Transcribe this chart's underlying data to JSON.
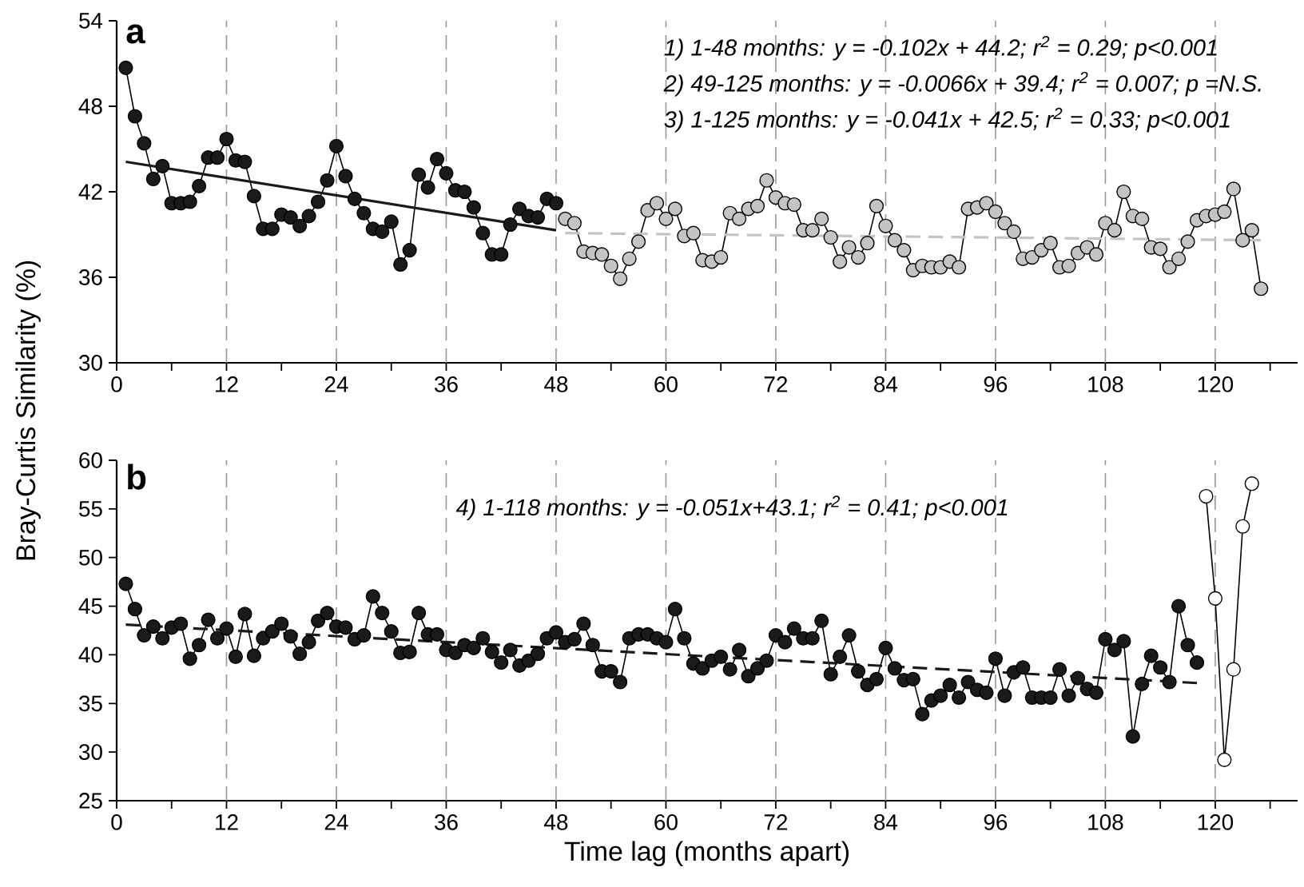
{
  "chart_data": [
    {
      "type": "line",
      "title": "a",
      "ylabel": "Bray-Curtis Similarity (%)",
      "annotations": [
        "1) 1-48 months: y = -0.102x + 44.2; r$^{2}$ = 0.29; p<0.001",
        "2) 49-125 months: y = -0.0066x + 39.4; r$^{2}$ = 0.007; p =N.S.",
        "3) 1-125 months: y = -0.041x + 42.5; r$^{2}$ = 0.33; p<0.001"
      ],
      "xlim": [
        0,
        129
      ],
      "ylim": [
        30,
        54
      ],
      "xticks": [
        0,
        {
          "value": 6,
          "label": null
        },
        12,
        {
          "value": 18,
          "label": null
        },
        24,
        {
          "value": 30,
          "label": null
        },
        36,
        {
          "value": 42,
          "label": null
        },
        48,
        {
          "value": 54,
          "label": null
        },
        60,
        {
          "value": 66,
          "label": null
        },
        72,
        {
          "value": 78,
          "label": null
        },
        84,
        {
          "value": 90,
          "label": null
        },
        96,
        {
          "value": 102,
          "label": null
        },
        108,
        {
          "value": 114,
          "label": null
        },
        120,
        {
          "value": 126,
          "label": null
        }
      ],
      "yticks": [
        30,
        36,
        42,
        48,
        54
      ],
      "ref_lines": [
        {
          "axis": "x",
          "value": 12,
          "color": "#999999",
          "line_style": "dashed"
        },
        {
          "axis": "x",
          "value": 24,
          "color": "#999999",
          "line_style": "dashed"
        },
        {
          "axis": "x",
          "value": 36,
          "color": "#999999",
          "line_style": "dashed"
        },
        {
          "axis": "x",
          "value": 48,
          "color": "#999999",
          "line_style": "dashed"
        },
        {
          "axis": "x",
          "value": 60,
          "color": "#999999",
          "line_style": "dashed"
        },
        {
          "axis": "x",
          "value": 72,
          "color": "#999999",
          "line_style": "dashed"
        },
        {
          "axis": "x",
          "value": 84,
          "color": "#999999",
          "line_style": "dashed"
        },
        {
          "axis": "x",
          "value": 96,
          "color": "#999999",
          "line_style": "dashed"
        },
        {
          "axis": "x",
          "value": 108,
          "color": "#999999",
          "line_style": "dashed"
        },
        {
          "axis": "x",
          "value": 120,
          "color": "#999999",
          "line_style": "dashed"
        }
      ],
      "series": [
        {
          "type": "line",
          "marker": "circle",
          "color": "#1a1a1a",
          "x": [
            1,
            2,
            3,
            4,
            5,
            6,
            7,
            8,
            9,
            10,
            11,
            12,
            13,
            14,
            15,
            16,
            17,
            18,
            19,
            20,
            21,
            22,
            23,
            24,
            25,
            26,
            27,
            28,
            29,
            30,
            31,
            32,
            33,
            34,
            35,
            36,
            37,
            38,
            39,
            40,
            41,
            42,
            43,
            44,
            45,
            46,
            47,
            48
          ],
          "values": [
            50.7,
            47.3,
            45.4,
            42.9,
            43.8,
            41.2,
            41.2,
            41.3,
            42.4,
            44.4,
            44.4,
            45.7,
            44.2,
            44.1,
            41.7,
            39.4,
            39.4,
            40.4,
            40.2,
            39.6,
            40.3,
            41.3,
            42.8,
            45.2,
            43.1,
            41.5,
            40.5,
            39.4,
            39.2,
            39.9,
            36.9,
            37.9,
            43.2,
            42.3,
            44.3,
            43.3,
            42.1,
            42.0,
            40.9,
            39.1,
            37.6,
            37.6,
            39.7,
            40.8,
            40.3,
            40.2,
            41.5,
            41.2
          ]
        },
        {
          "type": "line",
          "marker": "circle",
          "color": "#c4c4c4",
          "x": [
            49,
            50,
            51,
            52,
            53,
            54,
            55,
            56,
            57,
            58,
            59,
            60,
            61,
            62,
            63,
            64,
            65,
            66,
            67,
            68,
            69,
            70,
            71,
            72,
            73,
            74,
            75,
            76,
            77,
            78,
            79,
            80,
            81,
            82,
            83,
            84,
            85,
            86,
            87,
            88,
            89,
            90,
            91,
            92,
            93,
            94,
            95,
            96,
            97,
            98,
            99,
            100,
            101,
            102,
            103,
            104,
            105,
            106,
            107,
            108,
            109,
            110,
            111,
            112,
            113,
            114,
            115,
            116,
            117,
            118,
            119,
            120,
            121,
            122,
            123,
            124,
            125
          ],
          "values": [
            40.1,
            39.8,
            37.8,
            37.7,
            37.6,
            36.8,
            35.9,
            37.3,
            38.5,
            40.7,
            41.2,
            40.1,
            40.8,
            38.9,
            39.1,
            37.2,
            37.1,
            37.4,
            40.5,
            40.1,
            40.8,
            41.0,
            42.8,
            41.6,
            41.2,
            41.1,
            39.3,
            39.3,
            40.1,
            38.8,
            37.1,
            38.1,
            37.4,
            38.4,
            41.0,
            39.6,
            38.6,
            37.9,
            36.5,
            36.8,
            36.7,
            36.7,
            37.1,
            36.7,
            40.8,
            40.9,
            41.2,
            40.6,
            39.8,
            39.2,
            37.3,
            37.4,
            37.9,
            38.4,
            36.7,
            36.8,
            37.7,
            38.1,
            37.6,
            39.8,
            39.3,
            42.0,
            40.3,
            40.1,
            38.1,
            38.0,
            36.7,
            37.3,
            38.5,
            40.0,
            40.3,
            40.4,
            40.6,
            42.2,
            38.6,
            39.3,
            35.2
          ]
        },
        {
          "type": "line",
          "marker": "none",
          "line_style": "solid",
          "color": "#1a1a1a",
          "x": [
            1,
            48
          ],
          "values": [
            44.1,
            39.3
          ]
        },
        {
          "type": "line",
          "marker": "none",
          "line_style": "dashed",
          "color": "#c4c4c4",
          "x": [
            49,
            125
          ],
          "values": [
            39.1,
            38.6
          ]
        }
      ]
    },
    {
      "type": "line",
      "title": "b",
      "xlabel": "Time lag (months apart)",
      "annotations": [
        "4) 1-118 months: y = -0.051x+43.1; r$^{2}$ = 0.41; p<0.001"
      ],
      "xlim": [
        0,
        129
      ],
      "ylim": [
        25,
        60
      ],
      "xticks": [
        0,
        {
          "value": 6,
          "label": null
        },
        12,
        {
          "value": 18,
          "label": null
        },
        24,
        {
          "value": 30,
          "label": null
        },
        36,
        {
          "value": 42,
          "label": null
        },
        48,
        {
          "value": 54,
          "label": null
        },
        60,
        {
          "value": 66,
          "label": null
        },
        72,
        {
          "value": 78,
          "label": null
        },
        84,
        {
          "value": 90,
          "label": null
        },
        96,
        {
          "value": 102,
          "label": null
        },
        108,
        {
          "value": 114,
          "label": null
        },
        120,
        {
          "value": 126,
          "label": null
        }
      ],
      "yticks": [
        25,
        30,
        35,
        40,
        45,
        50,
        55,
        60
      ],
      "ref_lines": [
        {
          "axis": "x",
          "value": 12,
          "color": "#999999",
          "line_style": "dashed"
        },
        {
          "axis": "x",
          "value": 24,
          "color": "#999999",
          "line_style": "dashed"
        },
        {
          "axis": "x",
          "value": 36,
          "color": "#999999",
          "line_style": "dashed"
        },
        {
          "axis": "x",
          "value": 48,
          "color": "#999999",
          "line_style": "dashed"
        },
        {
          "axis": "x",
          "value": 60,
          "color": "#999999",
          "line_style": "dashed"
        },
        {
          "axis": "x",
          "value": 72,
          "color": "#999999",
          "line_style": "dashed"
        },
        {
          "axis": "x",
          "value": 84,
          "color": "#999999",
          "line_style": "dashed"
        },
        {
          "axis": "x",
          "value": 96,
          "color": "#999999",
          "line_style": "dashed"
        },
        {
          "axis": "x",
          "value": 108,
          "color": "#999999",
          "line_style": "dashed"
        },
        {
          "axis": "x",
          "value": 120,
          "color": "#999999",
          "line_style": "dashed"
        }
      ],
      "series": [
        {
          "type": "line",
          "marker": "circle",
          "color": "#1a1a1a",
          "x": [
            1,
            2,
            3,
            4,
            5,
            6,
            7,
            8,
            9,
            10,
            11,
            12,
            13,
            14,
            15,
            16,
            17,
            18,
            19,
            20,
            21,
            22,
            23,
            24,
            25,
            26,
            27,
            28,
            29,
            30,
            31,
            32,
            33,
            34,
            35,
            36,
            37,
            38,
            39,
            40,
            41,
            42,
            43,
            44,
            45,
            46,
            47,
            48,
            49,
            50,
            51,
            52,
            53,
            54,
            55,
            56,
            57,
            58,
            59,
            60,
            61,
            62,
            63,
            64,
            65,
            66,
            67,
            68,
            69,
            70,
            71,
            72,
            73,
            74,
            75,
            76,
            77,
            78,
            79,
            80,
            81,
            82,
            83,
            84,
            85,
            86,
            87,
            88,
            89,
            90,
            91,
            92,
            93,
            94,
            95,
            96,
            97,
            98,
            99,
            100,
            101,
            102,
            103,
            104,
            105,
            106,
            107,
            108,
            109,
            110,
            111,
            112,
            113,
            114,
            115,
            116,
            117,
            118
          ],
          "values": [
            47.3,
            44.7,
            42.0,
            42.9,
            41.7,
            42.8,
            43.2,
            39.6,
            41.0,
            43.6,
            41.7,
            42.7,
            39.8,
            44.2,
            39.9,
            41.7,
            42.4,
            43.2,
            41.9,
            40.1,
            41.3,
            43.5,
            44.3,
            42.9,
            42.8,
            41.6,
            42.0,
            46.0,
            44.3,
            42.4,
            40.2,
            40.3,
            44.3,
            42.1,
            42.1,
            40.5,
            40.2,
            41.0,
            40.7,
            41.7,
            40.3,
            39.2,
            40.5,
            38.9,
            39.4,
            40.1,
            41.7,
            42.3,
            41.3,
            41.6,
            43.2,
            41.0,
            38.3,
            38.3,
            37.2,
            41.7,
            42.1,
            42.1,
            41.7,
            41.3,
            44.7,
            41.7,
            39.1,
            38.6,
            39.4,
            39.8,
            38.5,
            40.5,
            37.8,
            38.6,
            39.4,
            42.0,
            41.3,
            42.7,
            41.7,
            41.7,
            43.5,
            38.0,
            39.8,
            42.0,
            38.3,
            36.9,
            37.5,
            40.7,
            38.6,
            37.4,
            37.5,
            33.9,
            35.3,
            35.8,
            36.9,
            35.6,
            37.2,
            36.4,
            36.1,
            39.6,
            35.8,
            38.2,
            38.7,
            35.6,
            35.6,
            35.6,
            38.5,
            35.8,
            37.6,
            36.5,
            36.1,
            41.6,
            40.5,
            41.4,
            31.6,
            37.0,
            39.9,
            38.7,
            37.2,
            45.0,
            41.0,
            39.2
          ]
        },
        {
          "type": "line",
          "marker": "circle",
          "color": "#ffffff",
          "x": [
            119,
            120,
            121,
            122,
            123,
            124
          ],
          "values": [
            56.3,
            45.8,
            29.2,
            38.5,
            53.2,
            57.6
          ]
        },
        {
          "type": "line",
          "marker": "none",
          "line_style": "dashed",
          "color": "#1a1a1a",
          "x": [
            1,
            118
          ],
          "values": [
            43.1,
            37.1
          ]
        }
      ]
    }
  ]
}
